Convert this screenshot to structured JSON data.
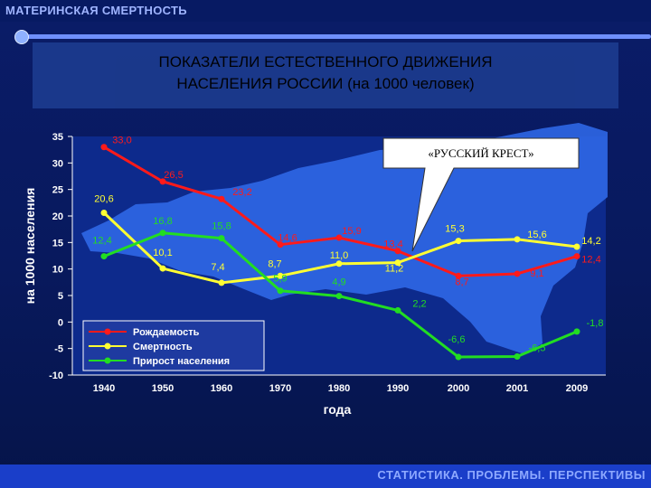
{
  "header": {
    "left_title": "МАТЕРИНСКАЯ СМЕРТНОСТЬ"
  },
  "slide": {
    "title_line1": "ПОКАЗАТЕЛИ ЕСТЕСТВЕННОГО ДВИЖЕНИЯ",
    "title_line2": "НАСЕЛЕНИЯ РОССИИ (на 1000 человек)"
  },
  "footer": {
    "text": "СТАТИСТИКА. ПРОБЛЕМЫ. ПЕРСПЕКТИВЫ"
  },
  "colors": {
    "background": "#0b1f6b",
    "plot_background": "#0d2a8c",
    "map_fill": "#2f67e6",
    "birth": "#ff1a1a",
    "death": "#ffff33",
    "growth": "#22dd22",
    "callout_fill": "#ffffff"
  },
  "chart_data": {
    "type": "line",
    "title": "",
    "xlabel": "года",
    "ylabel": "на 1000 населения",
    "categories": [
      "1940",
      "1950",
      "1960",
      "1970",
      "1980",
      "1990",
      "2000",
      "2001",
      "2009"
    ],
    "ylim": [
      -10,
      35
    ],
    "yticks": [
      35,
      30,
      25,
      20,
      15,
      10,
      5,
      0,
      -5,
      -10
    ],
    "ytick_labels": [
      "35",
      "30",
      "25",
      "20",
      "15",
      "10",
      "5",
      "0",
      "-5",
      "-10"
    ],
    "grid": false,
    "legend_position": "bottom-left",
    "callout": "«РУССКИЙ КРЕСТ»",
    "series": [
      {
        "name": "Рождаемость",
        "color": "#ff1a1a",
        "values": [
          33.0,
          26.5,
          23.2,
          14.6,
          15.9,
          13.4,
          8.7,
          9.1,
          12.4
        ],
        "labels": [
          "33,0",
          "26,5",
          "23,2",
          "14,6",
          "15,9",
          "13,4",
          "8,7",
          "9,1",
          "12,4"
        ]
      },
      {
        "name": "Смертность",
        "color": "#ffff33",
        "values": [
          20.6,
          10.1,
          7.4,
          8.7,
          11.0,
          11.2,
          15.3,
          15.6,
          14.2
        ],
        "labels": [
          "20,6",
          "10,1",
          "7,4",
          "8,7",
          "11,0",
          "11,2",
          "15,3",
          "15,6",
          "14,2"
        ]
      },
      {
        "name": "Прирост населения",
        "color": "#22dd22",
        "values": [
          12.4,
          16.8,
          15.8,
          5.9,
          4.9,
          2.2,
          -6.6,
          -6.5,
          -1.8
        ],
        "labels": [
          "12,4",
          "16,8",
          "15,8",
          "5,9",
          "4,9",
          "2,2",
          "-6,6",
          "-6,5",
          "-1,8"
        ]
      }
    ]
  }
}
